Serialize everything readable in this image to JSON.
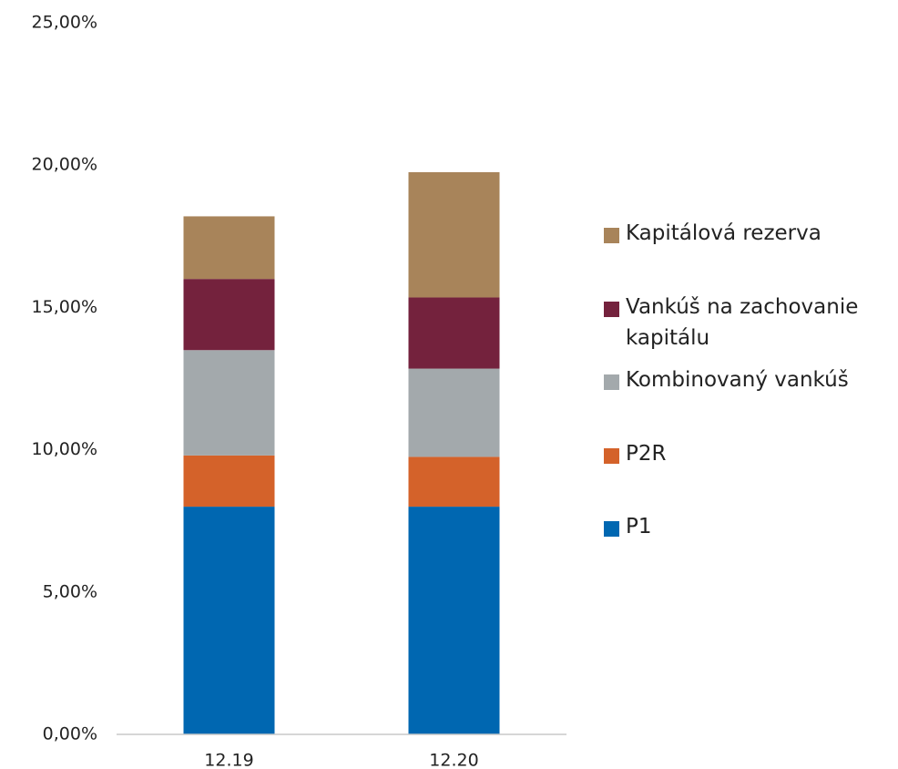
{
  "chart_data": {
    "type": "stacked-bar",
    "categories": [
      "12.19",
      "12.20"
    ],
    "series": [
      {
        "name": "P1",
        "color": "#0067b1",
        "values": [
          8.0,
          8.0
        ]
      },
      {
        "name": "P2R",
        "color": "#d4622a",
        "values": [
          1.8,
          1.75
        ]
      },
      {
        "name": "Kombinovaný vankúš",
        "color": "#a3a9ac",
        "values": [
          3.7,
          3.1
        ]
      },
      {
        "name": "Vankúš na zachovanie kapitálu",
        "color": "#74223d",
        "values": [
          2.5,
          2.5
        ]
      },
      {
        "name": "Kapitálová rezerva",
        "color": "#a8845a",
        "values": [
          2.2,
          4.4
        ]
      }
    ],
    "ylim": [
      0,
      25
    ],
    "yticks": [
      {
        "value": 0,
        "label": "0,00%"
      },
      {
        "value": 5,
        "label": "5,00%"
      },
      {
        "value": 10,
        "label": "10,00%"
      },
      {
        "value": 15,
        "label": "15,00%"
      },
      {
        "value": 20,
        "label": "20,00%"
      },
      {
        "value": 25,
        "label": "25,00%"
      }
    ],
    "grid": false,
    "legend": "right"
  }
}
